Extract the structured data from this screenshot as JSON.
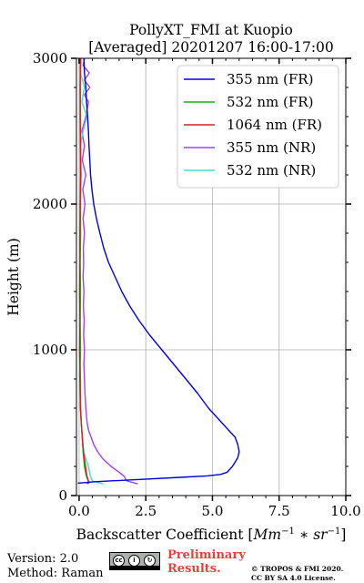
{
  "chart_data": {
    "type": "line",
    "title_line1": "PollyXT_FMI at Kuopio",
    "title_line2": "[Averaged] 20201207 16:00-17:00",
    "xlabel_text": "Backscatter Coefficient [",
    "xlabel_math": "Mm",
    "xlabel_exp1": "−1",
    "xlabel_mid": " ∗ sr",
    "xlabel_exp2": "−1",
    "xlabel_end": "]",
    "ylabel": "Height (m)",
    "xlim": [
      -0.1,
      10.0
    ],
    "ylim": [
      0,
      3000
    ],
    "xticks": [
      0.0,
      2.5,
      5.0,
      7.5,
      10.0
    ],
    "xtick_labels": [
      "0.0",
      "2.5",
      "5.0",
      "7.5",
      "10.0"
    ],
    "yticks": [
      0,
      1000,
      2000,
      3000
    ],
    "ytick_labels": [
      "0",
      "1000",
      "2000",
      "3000"
    ],
    "grid": true,
    "legend_position": "top-right",
    "series": [
      {
        "name": "355 nm (FR)",
        "color": "#0000e6",
        "y": [
          85,
          95,
          110,
          125,
          135,
          145,
          160,
          180,
          200,
          230,
          260,
          300,
          350,
          400,
          450,
          500,
          550,
          600,
          700,
          800,
          900,
          1000,
          1100,
          1200,
          1300,
          1400,
          1500,
          1600,
          1700,
          1800,
          1900,
          2000,
          2100,
          2200,
          2300,
          2400,
          2500,
          2600,
          2700,
          2800,
          2900,
          3000
        ],
        "x": [
          -0.05,
          0.6,
          2.2,
          3.8,
          4.8,
          5.3,
          5.55,
          5.65,
          5.75,
          5.85,
          5.95,
          6.0,
          5.95,
          5.85,
          5.6,
          5.35,
          5.1,
          4.85,
          4.45,
          4.0,
          3.55,
          3.1,
          2.65,
          2.25,
          1.9,
          1.6,
          1.35,
          1.1,
          0.92,
          0.78,
          0.65,
          0.55,
          0.48,
          0.43,
          0.4,
          0.37,
          0.35,
          0.32,
          0.28,
          0.25,
          0.2,
          0.18
        ]
      },
      {
        "name": "532 nm (FR)",
        "color": "#1ea81e",
        "y": [
          80,
          100,
          120,
          150,
          200,
          300,
          400,
          500,
          600,
          700,
          800,
          900,
          1000,
          1200,
          1400,
          1600,
          1800,
          2000,
          2200,
          2400,
          2600,
          2800,
          3000
        ],
        "x": [
          0.3,
          0.35,
          0.3,
          0.25,
          0.2,
          0.15,
          0.12,
          0.08,
          0.05,
          0.05,
          0.05,
          0.04,
          0.05,
          0.04,
          0.05,
          0.04,
          0.05,
          0.05,
          0.06,
          0.05,
          0.05,
          0.04,
          0.05
        ]
      },
      {
        "name": "1064 nm (FR)",
        "color": "#d62020",
        "y": [
          80,
          90,
          110,
          130,
          160,
          200,
          250,
          300,
          400,
          500,
          600,
          700,
          800,
          900,
          1000,
          1200,
          1400,
          1600,
          1800,
          2000,
          2200,
          2400,
          2600,
          2800,
          3000
        ],
        "x": [
          0.3,
          0.38,
          0.33,
          0.3,
          0.27,
          0.24,
          0.2,
          0.16,
          0.12,
          0.08,
          0.05,
          0.04,
          0.03,
          0.03,
          0.02,
          0.03,
          0.02,
          0.03,
          0.03,
          0.04,
          0.05,
          0.05,
          0.04,
          0.04,
          0.05
        ]
      },
      {
        "name": "355 nm (NR)",
        "color": "#a040f0",
        "y": [
          80,
          90,
          100,
          110,
          130,
          160,
          200,
          250,
          300,
          350,
          400,
          450,
          500,
          600,
          700,
          800,
          900,
          1000,
          1100,
          1200,
          1300,
          1400,
          1500,
          1600,
          1700,
          1800,
          1900,
          2000,
          2100,
          2200,
          2300,
          2400,
          2500,
          2600,
          2700,
          2750,
          2800,
          2850,
          2900,
          2950,
          3000
        ],
        "x": [
          2.2,
          2.0,
          1.8,
          1.75,
          1.7,
          1.5,
          1.2,
          0.9,
          0.7,
          0.55,
          0.45,
          0.35,
          0.3,
          0.25,
          0.22,
          0.2,
          0.18,
          0.2,
          0.17,
          0.19,
          0.16,
          0.18,
          0.15,
          0.17,
          0.16,
          0.2,
          0.15,
          0.22,
          0.14,
          0.25,
          0.12,
          0.2,
          0.1,
          0.25,
          0.35,
          0.2,
          0.4,
          0.2,
          0.38,
          0.15,
          0.2
        ]
      },
      {
        "name": "532 nm (NR)",
        "color": "#40e0d0",
        "y": [
          80,
          90,
          100,
          120,
          150,
          200,
          250,
          300,
          400,
          500,
          600,
          800,
          1000,
          1200,
          1400,
          1600,
          1800,
          2000,
          2200,
          2400,
          2500,
          2600,
          2700,
          2800,
          2900,
          3000
        ],
        "x": [
          0.9,
          0.7,
          0.5,
          0.45,
          0.4,
          0.35,
          0.25,
          0.18,
          0.12,
          0.08,
          0.05,
          0.03,
          0.04,
          0.02,
          0.05,
          0.03,
          0.06,
          0.03,
          0.08,
          0.05,
          0.15,
          0.3,
          0.1,
          0.2,
          0.05,
          0.08
        ]
      }
    ]
  },
  "footer": {
    "version": "Version: 2.0",
    "method": "Method: Raman",
    "prelim_line1": "Preliminary",
    "prelim_line2": "Results.",
    "copyright_line1": "© TROPOS & FMI 2020.",
    "copyright_line2": "CC BY SA 4.0 License.",
    "badge_cc": "cc",
    "badge_by": "i",
    "badge_sa": "↻"
  }
}
